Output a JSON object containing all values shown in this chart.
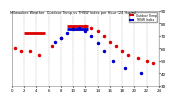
{
  "title": "Milwaukee Weather  Outdoor Temp   vs THSW Index   per Hour   (24 Hours)",
  "background_color": "#ffffff",
  "plot_bg_color": "#ffffff",
  "grid_color": "#aaaaaa",
  "text_color": "#000000",
  "temp_color": "#dd0000",
  "thsw_color": "#0000cc",
  "ylim": [
    30,
    90
  ],
  "ytick_values": [
    30,
    40,
    50,
    60,
    70,
    80,
    90
  ],
  "ytick_labels": [
    "30",
    "40",
    "50",
    "60",
    "70",
    "80",
    "90"
  ],
  "xlim": [
    0,
    24
  ],
  "hours_grid": [
    0,
    2,
    4,
    6,
    8,
    10,
    12,
    14,
    16,
    18,
    20,
    22,
    24
  ],
  "xtick_labels": [
    "0",
    "2",
    "4",
    "6",
    "8",
    "1",
    "3",
    "5",
    "7",
    "9",
    "1",
    "3",
    "5"
  ],
  "legend_labels": [
    "Outdoor Temp",
    "THSW Index"
  ],
  "legend_colors": [
    "#dd0000",
    "#0000cc"
  ],
  "temp_segments": [
    {
      "x": [
        2.0,
        5.5
      ],
      "y": [
        72,
        72
      ]
    },
    {
      "x": [
        9.0,
        12.5
      ],
      "y": [
        78,
        78
      ]
    }
  ],
  "temp_dots": [
    [
      0.5,
      60
    ],
    [
      1.5,
      58
    ],
    [
      3.0,
      58
    ],
    [
      4.5,
      55
    ],
    [
      6.5,
      62
    ],
    [
      8.0,
      68
    ],
    [
      10.0,
      76
    ],
    [
      11.0,
      77
    ],
    [
      12.0,
      78
    ],
    [
      13.0,
      76
    ],
    [
      14.0,
      74
    ],
    [
      15.0,
      70
    ],
    [
      16.0,
      65
    ],
    [
      17.0,
      62
    ],
    [
      18.0,
      58
    ],
    [
      19.0,
      55
    ],
    [
      20.5,
      52
    ],
    [
      22.0,
      50
    ],
    [
      23.0,
      48
    ]
  ],
  "thsw_dots": [
    [
      7.0,
      65
    ],
    [
      8.0,
      68
    ],
    [
      9.0,
      72
    ],
    [
      10.0,
      75
    ],
    [
      11.0,
      76
    ],
    [
      12.0,
      74
    ],
    [
      13.0,
      70
    ],
    [
      14.0,
      64
    ],
    [
      15.0,
      58
    ],
    [
      16.5,
      50
    ],
    [
      18.5,
      44
    ],
    [
      21.0,
      40
    ]
  ],
  "thsw_segments": [
    {
      "x": [
        9.0,
        12.5
      ],
      "y": [
        75,
        75
      ]
    }
  ],
  "marker_size": 1.5,
  "line_width": 2.0,
  "dot_size": 3
}
